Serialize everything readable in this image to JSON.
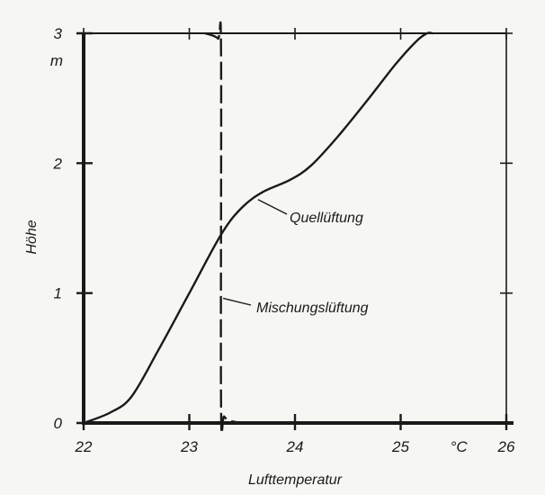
{
  "chart_data": {
    "type": "line",
    "xlabel": "Lufttemperatur",
    "ylabel": "Höhe",
    "x_unit": "°C",
    "y_unit": "m",
    "xlim": [
      22,
      26
    ],
    "ylim": [
      0,
      3
    ],
    "x_ticks": [
      "22",
      "23",
      "24",
      "25",
      "26"
    ],
    "y_ticks": [
      "0",
      "1",
      "2",
      "3"
    ],
    "grid": false,
    "colors": {
      "ink": "#1a1a1a",
      "background": "#f6f6f2"
    },
    "series": [
      {
        "name": "Quellüftung",
        "style": "solid",
        "points": [
          [
            22.0,
            0.0
          ],
          [
            22.25,
            0.08
          ],
          [
            22.45,
            0.2
          ],
          [
            22.7,
            0.55
          ],
          [
            23.0,
            1.0
          ],
          [
            23.3,
            1.45
          ],
          [
            23.5,
            1.66
          ],
          [
            23.7,
            1.78
          ],
          [
            23.95,
            1.87
          ],
          [
            24.15,
            1.98
          ],
          [
            24.4,
            2.2
          ],
          [
            24.7,
            2.5
          ],
          [
            24.95,
            2.76
          ],
          [
            25.15,
            2.94
          ],
          [
            25.25,
            3.0
          ],
          [
            25.3,
            3.0
          ]
        ]
      },
      {
        "name": "Mischungslüftung",
        "style": "dashed",
        "points": [
          [
            23.15,
            3.0
          ],
          [
            23.27,
            2.96
          ],
          [
            23.3,
            2.85
          ],
          [
            23.3,
            0.15
          ],
          [
            23.33,
            0.05
          ],
          [
            23.42,
            0.01
          ],
          [
            23.6,
            0.0
          ]
        ]
      }
    ],
    "annotations": [
      {
        "text": "Quellüftung",
        "series": 0
      },
      {
        "text": "Mischungslüftung",
        "series": 1
      }
    ]
  }
}
